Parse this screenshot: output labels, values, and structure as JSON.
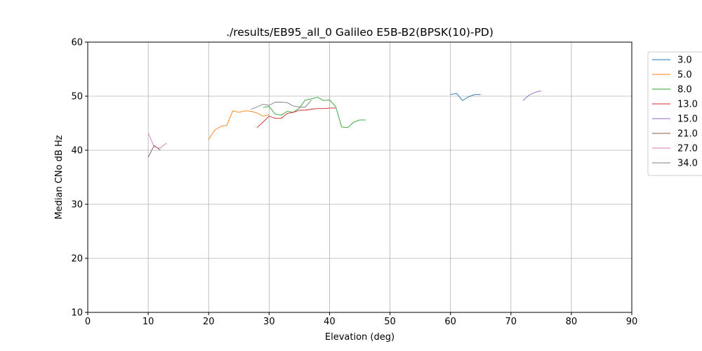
{
  "chart_data": {
    "type": "line",
    "title": "./results/EB95_all_0 Galileo E5B-B2(BPSK(10)-PD)",
    "xlabel": "Elevation (deg)",
    "ylabel": "Median CNo dB Hz",
    "xlim": [
      0,
      90
    ],
    "ylim": [
      10,
      60
    ],
    "xticks": [
      "0",
      "10",
      "20",
      "30",
      "40",
      "50",
      "60",
      "70",
      "80",
      "90"
    ],
    "yticks": [
      "10",
      "20",
      "30",
      "40",
      "50",
      "60"
    ],
    "grid": true,
    "legend_position": "outside-right",
    "series": [
      {
        "name": "3.0",
        "color": "#1f77b4",
        "points": [
          [
            60,
            50.3
          ],
          [
            61,
            50.5
          ],
          [
            62,
            49.2
          ],
          [
            63,
            49.9
          ],
          [
            64,
            50.3
          ],
          [
            65,
            50.3
          ]
        ]
      },
      {
        "name": "5.0",
        "color": "#ff7f0e",
        "points": [
          [
            20,
            42.0
          ],
          [
            21,
            43.7
          ],
          [
            22,
            44.4
          ],
          [
            23,
            44.6
          ],
          [
            24,
            47.3
          ],
          [
            25,
            47.0
          ],
          [
            26,
            47.3
          ],
          [
            27,
            47.2
          ],
          [
            28,
            46.9
          ],
          [
            29,
            46.3
          ],
          [
            30,
            46.6
          ]
        ]
      },
      {
        "name": "8.0",
        "color": "#2ca02c",
        "points": [
          [
            29,
            47.9
          ],
          [
            30,
            48.1
          ],
          [
            31,
            46.7
          ],
          [
            32,
            46.5
          ],
          [
            33,
            47.2
          ],
          [
            34,
            47.0
          ],
          [
            35,
            47.8
          ],
          [
            36,
            49.3
          ],
          [
            37,
            49.5
          ],
          [
            38,
            49.8
          ],
          [
            39,
            49.2
          ],
          [
            40,
            49.3
          ],
          [
            41,
            48.1
          ],
          [
            42,
            44.3
          ],
          [
            43,
            44.2
          ],
          [
            44,
            45.2
          ],
          [
            45,
            45.6
          ],
          [
            46,
            45.6
          ]
        ]
      },
      {
        "name": "13.0",
        "color": "#d62728",
        "points": [
          [
            28,
            44.2
          ],
          [
            29,
            45.2
          ],
          [
            30,
            46.3
          ],
          [
            31,
            45.9
          ],
          [
            32,
            45.9
          ],
          [
            33,
            46.8
          ],
          [
            34,
            47.0
          ],
          [
            35,
            47.4
          ],
          [
            36,
            47.4
          ],
          [
            37,
            47.6
          ],
          [
            38,
            47.7
          ],
          [
            39,
            47.7
          ],
          [
            40,
            47.8
          ],
          [
            41,
            47.8
          ]
        ]
      },
      {
        "name": "15.0",
        "color": "#9467bd",
        "points": [
          [
            72,
            49.2
          ],
          [
            73,
            50.2
          ],
          [
            74,
            50.7
          ],
          [
            75,
            51.0
          ]
        ]
      },
      {
        "name": "21.0",
        "color": "#8c564b",
        "points": [
          [
            10,
            38.7
          ],
          [
            11,
            40.9
          ],
          [
            12,
            40.0
          ]
        ]
      },
      {
        "name": "27.0",
        "color": "#e377c2",
        "points": [
          [
            10,
            43.2
          ],
          [
            11,
            40.6
          ],
          [
            12,
            40.4
          ],
          [
            13,
            41.3
          ]
        ]
      },
      {
        "name": "34.0",
        "color": "#7f7f7f",
        "points": [
          [
            27,
            47.6
          ],
          [
            28,
            48.0
          ],
          [
            29,
            48.5
          ],
          [
            30,
            48.3
          ],
          [
            31,
            48.9
          ],
          [
            32,
            48.9
          ],
          [
            33,
            48.8
          ],
          [
            34,
            48.2
          ],
          [
            35,
            48.0
          ],
          [
            36,
            48.0
          ],
          [
            37,
            49.3
          ]
        ]
      }
    ]
  }
}
